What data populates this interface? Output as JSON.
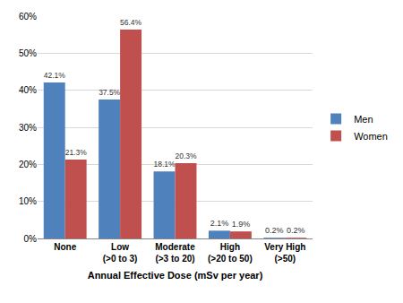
{
  "chart_data": {
    "type": "bar",
    "x_label": "Annual Effective Dose (mSv per year)",
    "categories": [
      "None",
      "Low\n(>0 to 3)",
      "Moderate\n(>3 to 20)",
      "High\n(>20 to 50)",
      "Very High\n(>50)"
    ],
    "series": [
      {
        "name": "Men",
        "color": "#4f81bd",
        "values": [
          42.1,
          37.5,
          18.1,
          2.1,
          0.2
        ],
        "value_labels": [
          "42.1%",
          "37.5%",
          "18.1%",
          "2.1%",
          "0.2%"
        ]
      },
      {
        "name": "Women",
        "color": "#c0504d",
        "values": [
          21.3,
          56.4,
          20.3,
          1.9,
          0.2
        ],
        "value_labels": [
          "21.3%",
          "56.4%",
          "20.3%",
          "1.9%",
          "0.2%"
        ]
      }
    ],
    "ylim": [
      0,
      60
    ],
    "yticks": [
      {
        "value": 0,
        "label": "0%"
      },
      {
        "value": 10,
        "label": "10%"
      },
      {
        "value": 20,
        "label": "20%"
      },
      {
        "value": 30,
        "label": "30%"
      },
      {
        "value": 40,
        "label": "40%"
      },
      {
        "value": 50,
        "label": "50%"
      },
      {
        "value": 60,
        "label": "60%"
      }
    ],
    "grid": true,
    "legend": "right",
    "data_labels": true
  }
}
